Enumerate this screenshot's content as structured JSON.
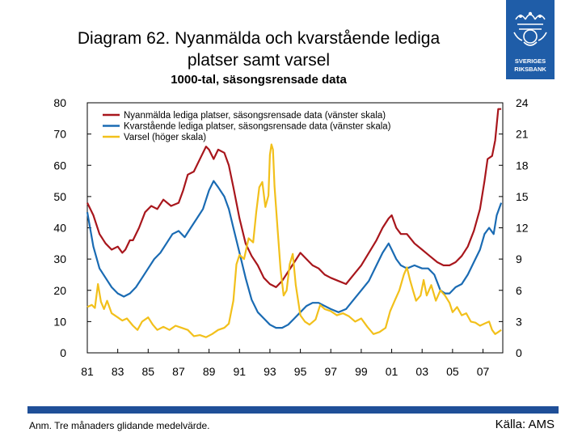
{
  "header": {
    "title_line1": "Diagram 62. Nyanmälda och kvarstående lediga",
    "title_line2": "platser samt varsel",
    "subtitle": "1000-tal, säsongsrensade data"
  },
  "logo": {
    "line1": "SVERIGES",
    "line2": "RIKSBANK",
    "icon": "crown-emblem-icon"
  },
  "footer": {
    "note": "Anm. Tre månaders glidande medelvärde.",
    "source": "Källa: AMS"
  },
  "colors": {
    "red": "#a8161c",
    "blue": "#1a6bb3",
    "yellow": "#f2c01b",
    "bar": "#1f4f98"
  },
  "chart_data": {
    "type": "line",
    "title": "Diagram 62. Nyanmälda och kvarstående lediga platser samt varsel",
    "subtitle": "1000-tal, säsongsrensade data",
    "x_ticks": [
      "81",
      "83",
      "85",
      "87",
      "89",
      "91",
      "93",
      "95",
      "97",
      "99",
      "01",
      "03",
      "05",
      "07"
    ],
    "x_range": [
      1981,
      2008.3
    ],
    "y_left": {
      "ticks": [
        "0",
        "10",
        "20",
        "30",
        "40",
        "50",
        "60",
        "70",
        "80"
      ],
      "range": [
        0,
        80
      ]
    },
    "y_right": {
      "ticks": [
        "0",
        "3",
        "6",
        "9",
        "12",
        "15",
        "18",
        "21",
        "24"
      ],
      "range": [
        0,
        24
      ]
    },
    "legend_position": "top-left",
    "series": [
      {
        "name": "Nyanmälda lediga platser, säsongsrensade data (vänster skala)",
        "axis": "left",
        "color": "#a8161c",
        "points": [
          [
            1981.0,
            48
          ],
          [
            1981.4,
            44
          ],
          [
            1981.8,
            38
          ],
          [
            1982.2,
            35
          ],
          [
            1982.6,
            33
          ],
          [
            1983.0,
            34
          ],
          [
            1983.3,
            32
          ],
          [
            1983.5,
            33
          ],
          [
            1983.8,
            36
          ],
          [
            1984.0,
            36
          ],
          [
            1984.4,
            40
          ],
          [
            1984.8,
            45
          ],
          [
            1985.2,
            47
          ],
          [
            1985.6,
            46
          ],
          [
            1986.0,
            49
          ],
          [
            1986.5,
            47
          ],
          [
            1987.0,
            48
          ],
          [
            1987.3,
            52
          ],
          [
            1987.6,
            57
          ],
          [
            1988.0,
            58
          ],
          [
            1988.5,
            63
          ],
          [
            1988.8,
            66
          ],
          [
            1989.0,
            65
          ],
          [
            1989.3,
            62
          ],
          [
            1989.6,
            65
          ],
          [
            1990.0,
            64
          ],
          [
            1990.3,
            60
          ],
          [
            1990.6,
            53
          ],
          [
            1991.0,
            43
          ],
          [
            1991.4,
            35
          ],
          [
            1991.8,
            31
          ],
          [
            1992.2,
            28
          ],
          [
            1992.6,
            24
          ],
          [
            1993.0,
            22
          ],
          [
            1993.4,
            21
          ],
          [
            1993.8,
            23
          ],
          [
            1994.2,
            26
          ],
          [
            1994.6,
            29
          ],
          [
            1995.0,
            32
          ],
          [
            1995.4,
            30
          ],
          [
            1995.8,
            28
          ],
          [
            1996.2,
            27
          ],
          [
            1996.6,
            25
          ],
          [
            1997.0,
            24
          ],
          [
            1997.5,
            23
          ],
          [
            1998.0,
            22
          ],
          [
            1998.5,
            25
          ],
          [
            1999.0,
            28
          ],
          [
            1999.5,
            32
          ],
          [
            2000.0,
            36
          ],
          [
            2000.4,
            40
          ],
          [
            2000.8,
            43
          ],
          [
            2001.0,
            44
          ],
          [
            2001.3,
            40
          ],
          [
            2001.6,
            38
          ],
          [
            2002.0,
            38
          ],
          [
            2002.5,
            35
          ],
          [
            2003.0,
            33
          ],
          [
            2003.5,
            31
          ],
          [
            2004.0,
            29
          ],
          [
            2004.4,
            28
          ],
          [
            2004.8,
            28
          ],
          [
            2005.2,
            29
          ],
          [
            2005.6,
            31
          ],
          [
            2006.0,
            34
          ],
          [
            2006.4,
            39
          ],
          [
            2006.8,
            46
          ],
          [
            2007.1,
            55
          ],
          [
            2007.3,
            62
          ],
          [
            2007.6,
            63
          ],
          [
            2007.8,
            68
          ],
          [
            2008.0,
            78
          ],
          [
            2008.2,
            78
          ]
        ]
      },
      {
        "name": "Kvarstående lediga platser, säsongsrensade data (vänster skala)",
        "axis": "left",
        "color": "#1a6bb3",
        "points": [
          [
            1981.0,
            45
          ],
          [
            1981.4,
            34
          ],
          [
            1981.8,
            27
          ],
          [
            1982.2,
            24
          ],
          [
            1982.6,
            21
          ],
          [
            1983.0,
            19
          ],
          [
            1983.4,
            18
          ],
          [
            1983.8,
            19
          ],
          [
            1984.2,
            21
          ],
          [
            1984.6,
            24
          ],
          [
            1985.0,
            27
          ],
          [
            1985.4,
            30
          ],
          [
            1985.8,
            32
          ],
          [
            1986.2,
            35
          ],
          [
            1986.6,
            38
          ],
          [
            1987.0,
            39
          ],
          [
            1987.4,
            37
          ],
          [
            1987.8,
            40
          ],
          [
            1988.2,
            43
          ],
          [
            1988.6,
            46
          ],
          [
            1989.0,
            52
          ],
          [
            1989.3,
            55
          ],
          [
            1989.6,
            53
          ],
          [
            1990.0,
            50
          ],
          [
            1990.3,
            46
          ],
          [
            1990.6,
            40
          ],
          [
            1991.0,
            32
          ],
          [
            1991.4,
            24
          ],
          [
            1991.8,
            17
          ],
          [
            1992.2,
            13
          ],
          [
            1992.6,
            11
          ],
          [
            1993.0,
            9
          ],
          [
            1993.4,
            8
          ],
          [
            1993.8,
            8
          ],
          [
            1994.2,
            9
          ],
          [
            1994.6,
            11
          ],
          [
            1995.0,
            13
          ],
          [
            1995.4,
            15
          ],
          [
            1995.8,
            16
          ],
          [
            1996.2,
            16
          ],
          [
            1996.6,
            15
          ],
          [
            1997.0,
            14
          ],
          [
            1997.5,
            13
          ],
          [
            1998.0,
            14
          ],
          [
            1998.5,
            17
          ],
          [
            1999.0,
            20
          ],
          [
            1999.5,
            23
          ],
          [
            2000.0,
            28
          ],
          [
            2000.4,
            32
          ],
          [
            2000.8,
            35
          ],
          [
            2001.0,
            33
          ],
          [
            2001.3,
            30
          ],
          [
            2001.6,
            28
          ],
          [
            2002.0,
            27
          ],
          [
            2002.5,
            28
          ],
          [
            2003.0,
            27
          ],
          [
            2003.4,
            27
          ],
          [
            2003.8,
            25
          ],
          [
            2004.2,
            20
          ],
          [
            2004.5,
            19
          ],
          [
            2004.8,
            19
          ],
          [
            2005.2,
            21
          ],
          [
            2005.6,
            22
          ],
          [
            2006.0,
            25
          ],
          [
            2006.4,
            29
          ],
          [
            2006.8,
            33
          ],
          [
            2007.1,
            38
          ],
          [
            2007.4,
            40
          ],
          [
            2007.7,
            38
          ],
          [
            2007.9,
            44
          ],
          [
            2008.2,
            48
          ]
        ]
      },
      {
        "name": "Varsel (höger skala)",
        "axis": "right",
        "color": "#f2c01b",
        "points": [
          [
            1981.0,
            4.4
          ],
          [
            1981.3,
            4.6
          ],
          [
            1981.5,
            4.3
          ],
          [
            1981.7,
            6.6
          ],
          [
            1981.9,
            4.9
          ],
          [
            1982.1,
            4.2
          ],
          [
            1982.3,
            5.0
          ],
          [
            1982.6,
            3.8
          ],
          [
            1983.0,
            3.4
          ],
          [
            1983.3,
            3.1
          ],
          [
            1983.6,
            3.3
          ],
          [
            1984.0,
            2.6
          ],
          [
            1984.3,
            2.2
          ],
          [
            1984.6,
            3.0
          ],
          [
            1985.0,
            3.4
          ],
          [
            1985.3,
            2.7
          ],
          [
            1985.6,
            2.2
          ],
          [
            1986.0,
            2.5
          ],
          [
            1986.4,
            2.2
          ],
          [
            1986.8,
            2.6
          ],
          [
            1987.2,
            2.4
          ],
          [
            1987.6,
            2.2
          ],
          [
            1988.0,
            1.6
          ],
          [
            1988.4,
            1.7
          ],
          [
            1988.8,
            1.5
          ],
          [
            1989.2,
            1.8
          ],
          [
            1989.6,
            2.2
          ],
          [
            1990.0,
            2.4
          ],
          [
            1990.3,
            2.8
          ],
          [
            1990.6,
            5.0
          ],
          [
            1990.8,
            8.5
          ],
          [
            1991.0,
            9.4
          ],
          [
            1991.3,
            9.0
          ],
          [
            1991.6,
            11.0
          ],
          [
            1991.9,
            10.6
          ],
          [
            1992.1,
            13.5
          ],
          [
            1992.3,
            15.9
          ],
          [
            1992.5,
            16.4
          ],
          [
            1992.7,
            14.0
          ],
          [
            1992.9,
            15.1
          ],
          [
            1993.0,
            19.0
          ],
          [
            1993.1,
            20.0
          ],
          [
            1993.2,
            19.5
          ],
          [
            1993.3,
            16.0
          ],
          [
            1993.5,
            12.0
          ],
          [
            1993.7,
            8.0
          ],
          [
            1993.9,
            5.5
          ],
          [
            1994.1,
            6.0
          ],
          [
            1994.3,
            8.5
          ],
          [
            1994.5,
            9.5
          ],
          [
            1994.7,
            6.5
          ],
          [
            1995.0,
            3.6
          ],
          [
            1995.3,
            3.0
          ],
          [
            1995.6,
            2.7
          ],
          [
            1996.0,
            3.2
          ],
          [
            1996.3,
            4.6
          ],
          [
            1996.6,
            4.2
          ],
          [
            1997.0,
            4.0
          ],
          [
            1997.4,
            3.6
          ],
          [
            1997.8,
            3.8
          ],
          [
            1998.2,
            3.5
          ],
          [
            1998.6,
            3.0
          ],
          [
            1999.0,
            3.3
          ],
          [
            1999.4,
            2.5
          ],
          [
            1999.8,
            1.8
          ],
          [
            2000.2,
            2.0
          ],
          [
            2000.6,
            2.4
          ],
          [
            2000.9,
            4.0
          ],
          [
            2001.2,
            5.0
          ],
          [
            2001.5,
            6.0
          ],
          [
            2001.8,
            7.5
          ],
          [
            2002.0,
            8.2
          ],
          [
            2002.2,
            7.0
          ],
          [
            2002.4,
            6.0
          ],
          [
            2002.6,
            5.0
          ],
          [
            2002.9,
            5.5
          ],
          [
            2003.1,
            7.0
          ],
          [
            2003.3,
            5.5
          ],
          [
            2003.6,
            6.5
          ],
          [
            2003.9,
            5.0
          ],
          [
            2004.2,
            6.0
          ],
          [
            2004.5,
            5.5
          ],
          [
            2004.8,
            4.8
          ],
          [
            2005.0,
            3.9
          ],
          [
            2005.3,
            4.4
          ],
          [
            2005.6,
            3.6
          ],
          [
            2005.9,
            3.8
          ],
          [
            2006.2,
            3.0
          ],
          [
            2006.5,
            2.9
          ],
          [
            2006.8,
            2.6
          ],
          [
            2007.1,
            2.8
          ],
          [
            2007.4,
            3.0
          ],
          [
            2007.6,
            2.2
          ],
          [
            2007.8,
            1.8
          ],
          [
            2008.0,
            2.0
          ],
          [
            2008.2,
            2.2
          ]
        ]
      }
    ]
  }
}
